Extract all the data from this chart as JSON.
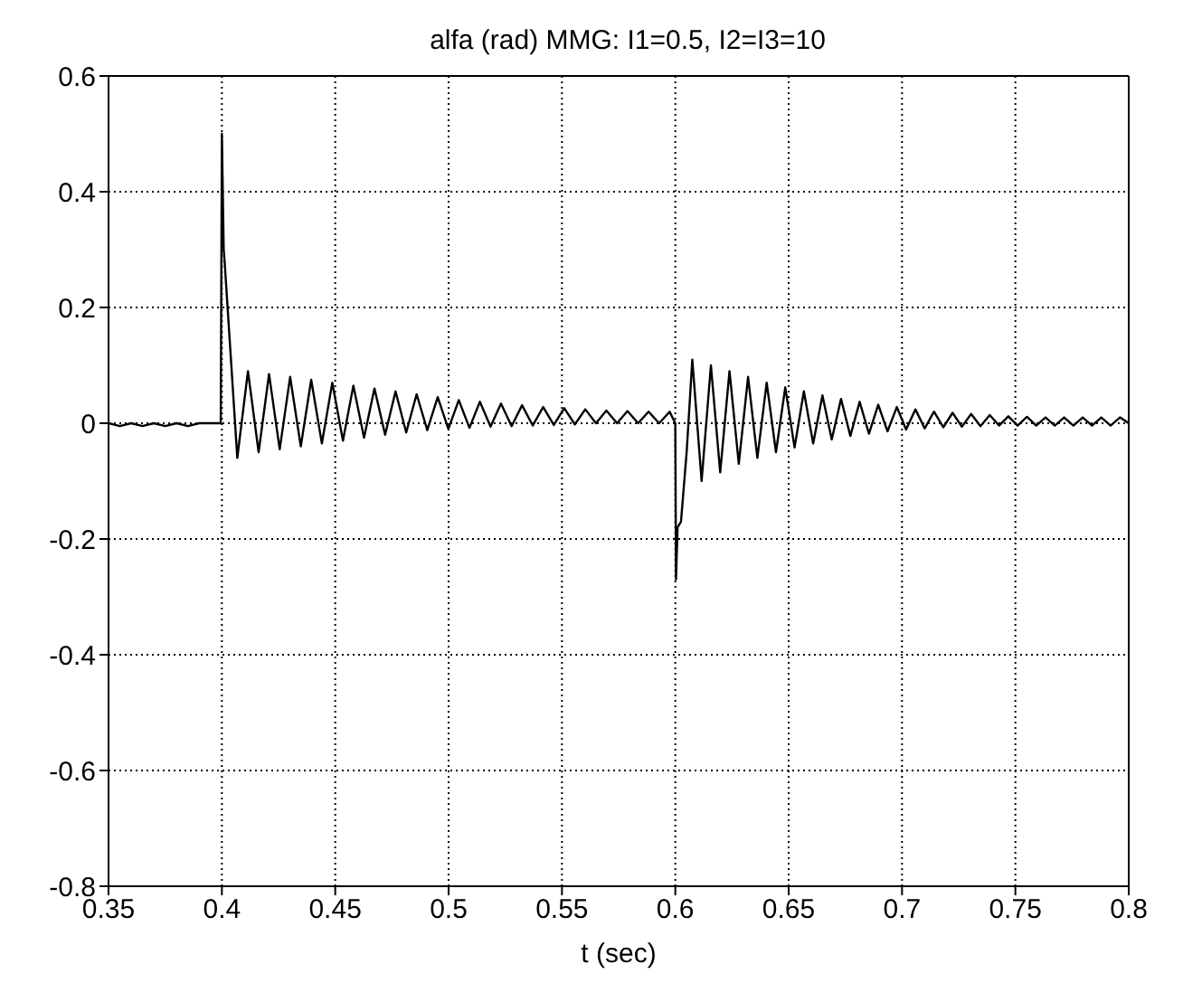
{
  "chart_data": {
    "type": "line",
    "title": "alfa (rad) MMG: I1=0.5, I2=I3=10",
    "xlabel": "t (sec)",
    "xlim": [
      0.35,
      0.8
    ],
    "xticks": [
      0.35,
      0.4,
      0.45,
      0.5,
      0.55,
      0.6,
      0.65,
      0.7,
      0.75,
      0.8
    ],
    "ylim": [
      -0.8,
      0.6
    ],
    "yticks": [
      -0.8,
      -0.6,
      -0.4,
      -0.2,
      0,
      0.2,
      0.4,
      0.6
    ],
    "grid": true,
    "line_style": "solid",
    "series": [
      {
        "color": "#000000",
        "x": [
          0.35,
          0.355,
          0.36,
          0.365,
          0.37,
          0.375,
          0.38,
          0.385,
          0.39,
          0.3995,
          0.4,
          0.4008,
          0.4012,
          0.4068,
          0.4115,
          0.4162,
          0.4208,
          0.4255,
          0.4301,
          0.4348,
          0.4394,
          0.4441,
          0.4487,
          0.4534,
          0.458,
          0.4627,
          0.4673,
          0.472,
          0.4766,
          0.4813,
          0.4859,
          0.4906,
          0.4952,
          0.4999,
          0.5045,
          0.5092,
          0.5138,
          0.5185,
          0.5231,
          0.5278,
          0.5324,
          0.5371,
          0.5417,
          0.5464,
          0.551,
          0.5557,
          0.5603,
          0.565,
          0.5696,
          0.5743,
          0.5789,
          0.5836,
          0.5882,
          0.5929,
          0.5975,
          0.6,
          0.6003,
          0.601,
          0.6025,
          0.605,
          0.6075,
          0.6116,
          0.6157,
          0.6198,
          0.6239,
          0.628,
          0.6321,
          0.6362,
          0.6403,
          0.6444,
          0.6485,
          0.6526,
          0.6567,
          0.6608,
          0.6649,
          0.669,
          0.6731,
          0.6772,
          0.6813,
          0.6854,
          0.6895,
          0.6936,
          0.6977,
          0.7018,
          0.7059,
          0.71,
          0.7141,
          0.7182,
          0.7223,
          0.7264,
          0.7305,
          0.7346,
          0.7387,
          0.7428,
          0.7469,
          0.751,
          0.7551,
          0.7592,
          0.7633,
          0.7674,
          0.7715,
          0.7756,
          0.7797,
          0.7838,
          0.7879,
          0.792,
          0.7961,
          0.8
        ],
        "values": [
          0,
          -0.005,
          0,
          -0.005,
          0,
          -0.005,
          0,
          -0.005,
          0,
          0,
          0.5,
          0.3,
          0.28,
          -0.06,
          0.09,
          -0.05,
          0.085,
          -0.045,
          0.08,
          -0.04,
          0.075,
          -0.035,
          0.07,
          -0.03,
          0.065,
          -0.025,
          0.06,
          -0.02,
          0.055,
          -0.016,
          0.05,
          -0.012,
          0.045,
          -0.01,
          0.04,
          -0.008,
          0.037,
          -0.006,
          0.034,
          -0.005,
          0.031,
          -0.004,
          0.028,
          -0.003,
          0.026,
          -0.002,
          0.024,
          0,
          0.022,
          0,
          0.021,
          0,
          0.02,
          0,
          0.02,
          0,
          -0.27,
          -0.18,
          -0.17,
          -0.05,
          0.11,
          -0.1,
          0.1,
          -0.085,
          0.09,
          -0.07,
          0.08,
          -0.06,
          0.07,
          -0.05,
          0.062,
          -0.042,
          0.055,
          -0.035,
          0.048,
          -0.028,
          0.042,
          -0.022,
          0.037,
          -0.018,
          0.032,
          -0.014,
          0.028,
          -0.011,
          0.024,
          -0.009,
          0.02,
          -0.007,
          0.018,
          -0.006,
          0.016,
          -0.005,
          0.014,
          -0.004,
          0.012,
          -0.004,
          0.011,
          -0.004,
          0.01,
          -0.004,
          0.01,
          -0.004,
          0.01,
          -0.004,
          0.01,
          -0.004,
          0.01,
          0
        ]
      }
    ]
  }
}
